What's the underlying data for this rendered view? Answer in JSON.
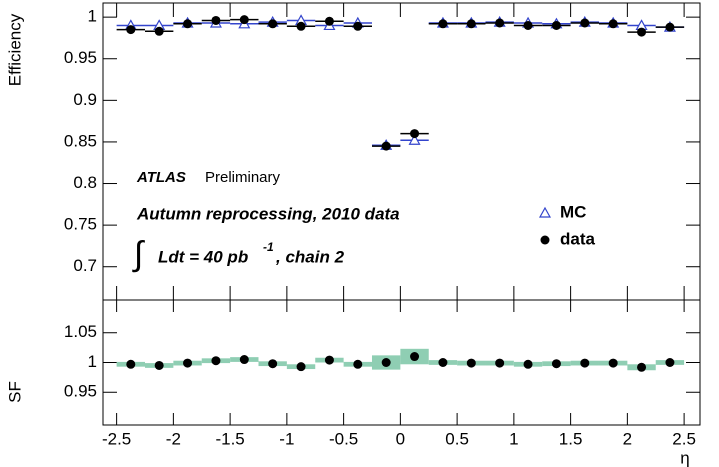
{
  "chart_data": [
    {
      "type": "efficiency",
      "y_label": "Efficiency",
      "experiment": "ATLAS",
      "status": "Preliminary",
      "description": "Autumn reprocessing, 2010 data",
      "lumi_integral": "∫",
      "lumi_text": "Ldt = 40 pb",
      "lumi_exponent": "-1",
      "lumi_suffix": ", chain 2",
      "x": [
        -2.375,
        -2.125,
        -1.875,
        -1.625,
        -1.375,
        -1.125,
        -0.875,
        -0.625,
        -0.375,
        -0.125,
        0.125,
        0.375,
        0.625,
        0.875,
        1.125,
        1.375,
        1.625,
        1.875,
        2.125,
        2.375
      ],
      "series": [
        {
          "name": "MC",
          "color": "#3344cc",
          "marker": "open-triangle",
          "values": [
            0.99,
            0.99,
            0.993,
            0.993,
            0.992,
            0.994,
            0.996,
            0.99,
            0.993,
            0.846,
            0.852,
            0.993,
            0.993,
            0.994,
            0.993,
            0.992,
            0.994,
            0.993,
            0.99,
            0.988
          ]
        },
        {
          "name": "data",
          "color": "#000000",
          "marker": "filled-circle",
          "values": [
            0.985,
            0.983,
            0.992,
            0.996,
            0.997,
            0.992,
            0.989,
            0.995,
            0.989,
            0.845,
            0.86,
            0.992,
            0.992,
            0.993,
            0.99,
            0.99,
            0.993,
            0.992,
            0.982,
            0.988
          ]
        }
      ],
      "xlim": [
        -2.62,
        2.64
      ],
      "ylim": [
        0.66,
        1.017
      ],
      "yticks": [
        0.7,
        0.75,
        0.8,
        0.85,
        0.9,
        0.95,
        1
      ]
    },
    {
      "type": "ratio",
      "y_label": "SF",
      "x_label": "η",
      "x": [
        -2.375,
        -2.125,
        -1.875,
        -1.625,
        -1.375,
        -1.125,
        -0.875,
        -0.625,
        -0.375,
        -0.125,
        0.125,
        0.375,
        0.625,
        0.875,
        1.125,
        1.375,
        1.625,
        1.875,
        2.125,
        2.375
      ],
      "values": [
        0.997,
        0.995,
        0.999,
        1.003,
        1.005,
        0.998,
        0.993,
        1.004,
        0.997,
        1.0,
        1.01,
        1.0,
        0.999,
        0.999,
        0.997,
        0.998,
        0.999,
        0.999,
        0.992,
        1.0
      ],
      "errors": [
        0.004,
        0.004,
        0.004,
        0.004,
        0.004,
        0.004,
        0.004,
        0.004,
        0.004,
        0.012,
        0.013,
        0.004,
        0.004,
        0.004,
        0.004,
        0.004,
        0.004,
        0.004,
        0.005,
        0.004
      ],
      "color": "#000000",
      "band_color": "#8fceb3",
      "xlim": [
        -2.62,
        2.64
      ],
      "ylim": [
        0.895,
        1.105
      ],
      "xticks": [
        -2.5,
        -2,
        -1.5,
        -1,
        -0.5,
        0,
        0.5,
        1,
        1.5,
        2,
        2.5
      ],
      "yticks": [
        0.95,
        1,
        1.05
      ]
    }
  ]
}
